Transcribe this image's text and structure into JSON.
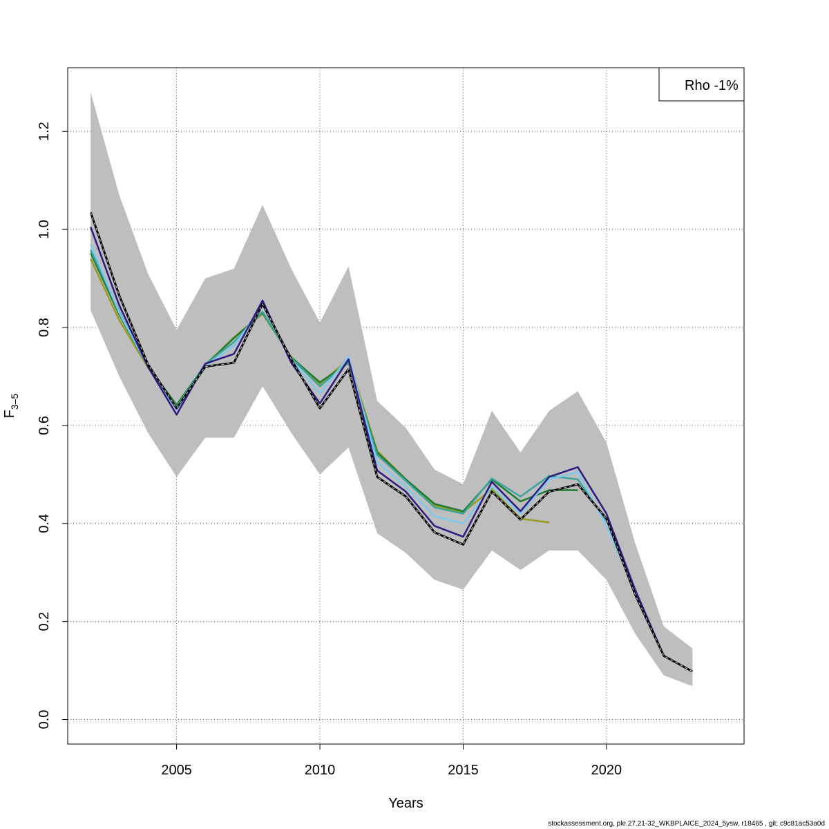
{
  "footer_text": "stockassessment.org, ple.27.21-32_WKBPLAICE_2024_5ysw, r18465 , git: c9c81ac53a0d",
  "chart_data": {
    "type": "line",
    "xlabel": "Years",
    "ylabel_main": "F",
    "ylabel_sub": "3–5",
    "xlim": [
      2001.2,
      2024.8
    ],
    "ylim": [
      -0.05,
      1.33
    ],
    "xticks": [
      2005,
      2010,
      2015,
      2020
    ],
    "yticks": [
      0.0,
      0.2,
      0.4,
      0.6,
      0.8,
      1.0,
      1.2
    ],
    "grid": true,
    "legend_position": "top-right",
    "legend_text": "Rho -1%",
    "confidence_band": {
      "x": [
        2002,
        2003,
        2004,
        2005,
        2006,
        2007,
        2008,
        2009,
        2010,
        2011,
        2012,
        2013,
        2014,
        2015,
        2016,
        2017,
        2018,
        2019,
        2020,
        2021,
        2022,
        2023
      ],
      "upper": [
        1.28,
        1.07,
        0.91,
        0.795,
        0.9,
        0.92,
        1.05,
        0.92,
        0.81,
        0.925,
        0.65,
        0.595,
        0.51,
        0.48,
        0.63,
        0.545,
        0.63,
        0.67,
        0.565,
        0.36,
        0.19,
        0.145
      ],
      "lower": [
        0.835,
        0.7,
        0.585,
        0.495,
        0.575,
        0.575,
        0.68,
        0.585,
        0.5,
        0.555,
        0.38,
        0.34,
        0.285,
        0.265,
        0.345,
        0.305,
        0.345,
        0.345,
        0.285,
        0.175,
        0.09,
        0.068
      ],
      "color": "#bebebe"
    },
    "series": [
      {
        "color": "#000000",
        "style": "base",
        "x": [
          2002,
          2003,
          2004,
          2005,
          2006,
          2007,
          2008,
          2009,
          2010,
          2011,
          2012,
          2013,
          2014,
          2015,
          2016,
          2017,
          2018,
          2019,
          2020,
          2021,
          2022,
          2023
        ],
        "values": [
          1.035,
          0.865,
          0.725,
          0.635,
          0.72,
          0.728,
          0.848,
          0.735,
          0.635,
          0.715,
          0.495,
          0.455,
          0.382,
          0.357,
          0.465,
          0.408,
          0.465,
          0.48,
          0.41,
          0.255,
          0.13,
          0.098
        ]
      },
      {
        "color": "#2e1a80",
        "style": "peel",
        "x": [
          2002,
          2003,
          2004,
          2005,
          2006,
          2007,
          2008,
          2009,
          2010,
          2011,
          2012,
          2013,
          2014,
          2015,
          2016,
          2017,
          2018,
          2019,
          2020,
          2021,
          2022
        ],
        "values": [
          1.005,
          0.845,
          0.72,
          0.622,
          0.726,
          0.746,
          0.855,
          0.728,
          0.645,
          0.735,
          0.508,
          0.465,
          0.395,
          0.373,
          0.485,
          0.425,
          0.495,
          0.515,
          0.42,
          0.265,
          0.13
        ]
      },
      {
        "color": "#7ec8ee",
        "style": "peel",
        "x": [
          2002,
          2003,
          2004,
          2005,
          2006,
          2007,
          2008,
          2009,
          2010,
          2011,
          2012,
          2013,
          2014,
          2015,
          2016,
          2017,
          2018,
          2019,
          2020,
          2021
        ],
        "values": [
          0.97,
          0.83,
          0.72,
          0.632,
          0.72,
          0.762,
          0.845,
          0.735,
          0.665,
          0.74,
          0.525,
          0.475,
          0.415,
          0.4,
          0.475,
          0.42,
          0.49,
          0.505,
          0.395,
          0.262
        ]
      },
      {
        "color": "#37a59a",
        "style": "peel",
        "x": [
          2002,
          2003,
          2004,
          2005,
          2006,
          2007,
          2008,
          2009,
          2010,
          2011,
          2012,
          2013,
          2014,
          2015,
          2016,
          2017,
          2018,
          2019,
          2020
        ],
        "values": [
          0.958,
          0.832,
          0.72,
          0.638,
          0.725,
          0.77,
          0.832,
          0.738,
          0.68,
          0.73,
          0.54,
          0.487,
          0.433,
          0.42,
          0.492,
          0.455,
          0.497,
          0.49,
          0.405
        ]
      },
      {
        "color": "#1f7a32",
        "style": "peel",
        "x": [
          2002,
          2003,
          2004,
          2005,
          2006,
          2007,
          2008,
          2009,
          2010,
          2011,
          2012,
          2013,
          2014,
          2015,
          2016,
          2017,
          2018,
          2019
        ],
        "values": [
          0.952,
          0.826,
          0.72,
          0.642,
          0.724,
          0.778,
          0.83,
          0.739,
          0.688,
          0.728,
          0.545,
          0.49,
          0.44,
          0.425,
          0.49,
          0.445,
          0.468,
          0.468
        ]
      },
      {
        "color": "#9a9a1c",
        "style": "peel",
        "x": [
          2002,
          2003,
          2004,
          2005,
          2006,
          2007,
          2008,
          2009,
          2010,
          2011,
          2012,
          2013,
          2014,
          2015,
          2016,
          2017,
          2018
        ],
        "values": [
          0.94,
          0.815,
          0.718,
          0.637,
          0.722,
          0.78,
          0.828,
          0.74,
          0.685,
          0.735,
          0.548,
          0.49,
          0.437,
          0.423,
          0.47,
          0.41,
          0.402
        ]
      }
    ]
  }
}
